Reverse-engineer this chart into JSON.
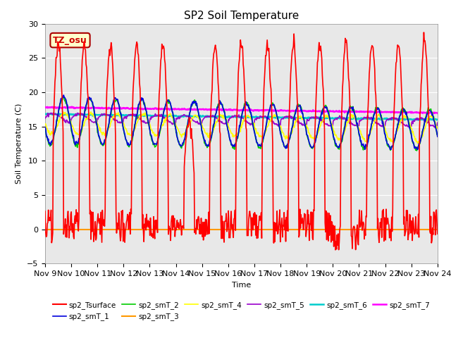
{
  "title": "SP2 Soil Temperature",
  "xlabel": "Time",
  "ylabel": "Soil Temperature (C)",
  "ylim": [
    -5,
    30
  ],
  "xlim": [
    0,
    15
  ],
  "x_tick_labels": [
    "Nov 9",
    "Nov 10",
    "Nov 11",
    "Nov 12",
    "Nov 13",
    "Nov 14",
    "Nov 15",
    "Nov 16",
    "Nov 17",
    "Nov 18",
    "Nov 19",
    "Nov 20",
    "Nov 21",
    "Nov 22",
    "Nov 23",
    "Nov 24"
  ],
  "annotation_text": "TZ_osu",
  "annotation_bg": "#ffffcc",
  "annotation_border": "#aa0000",
  "plot_bg": "#e8e8e8",
  "fig_bg": "#ffffff",
  "series": {
    "sp2_Tsurface": {
      "color": "#ff0000",
      "lw": 1.2
    },
    "sp2_smT_1": {
      "color": "#0000dd",
      "lw": 1.2
    },
    "sp2_smT_2": {
      "color": "#00cc00",
      "lw": 1.2
    },
    "sp2_smT_3": {
      "color": "#ff9900",
      "lw": 1.5
    },
    "sp2_smT_4": {
      "color": "#ffff00",
      "lw": 1.2
    },
    "sp2_smT_5": {
      "color": "#9900cc",
      "lw": 1.2
    },
    "sp2_smT_6": {
      "color": "#00cccc",
      "lw": 1.8
    },
    "sp2_smT_7": {
      "color": "#ff00ff",
      "lw": 1.8
    }
  },
  "legend_order": [
    "sp2_Tsurface",
    "sp2_smT_1",
    "sp2_smT_2",
    "sp2_smT_3",
    "sp2_smT_4",
    "sp2_smT_5",
    "sp2_smT_6",
    "sp2_smT_7"
  ]
}
